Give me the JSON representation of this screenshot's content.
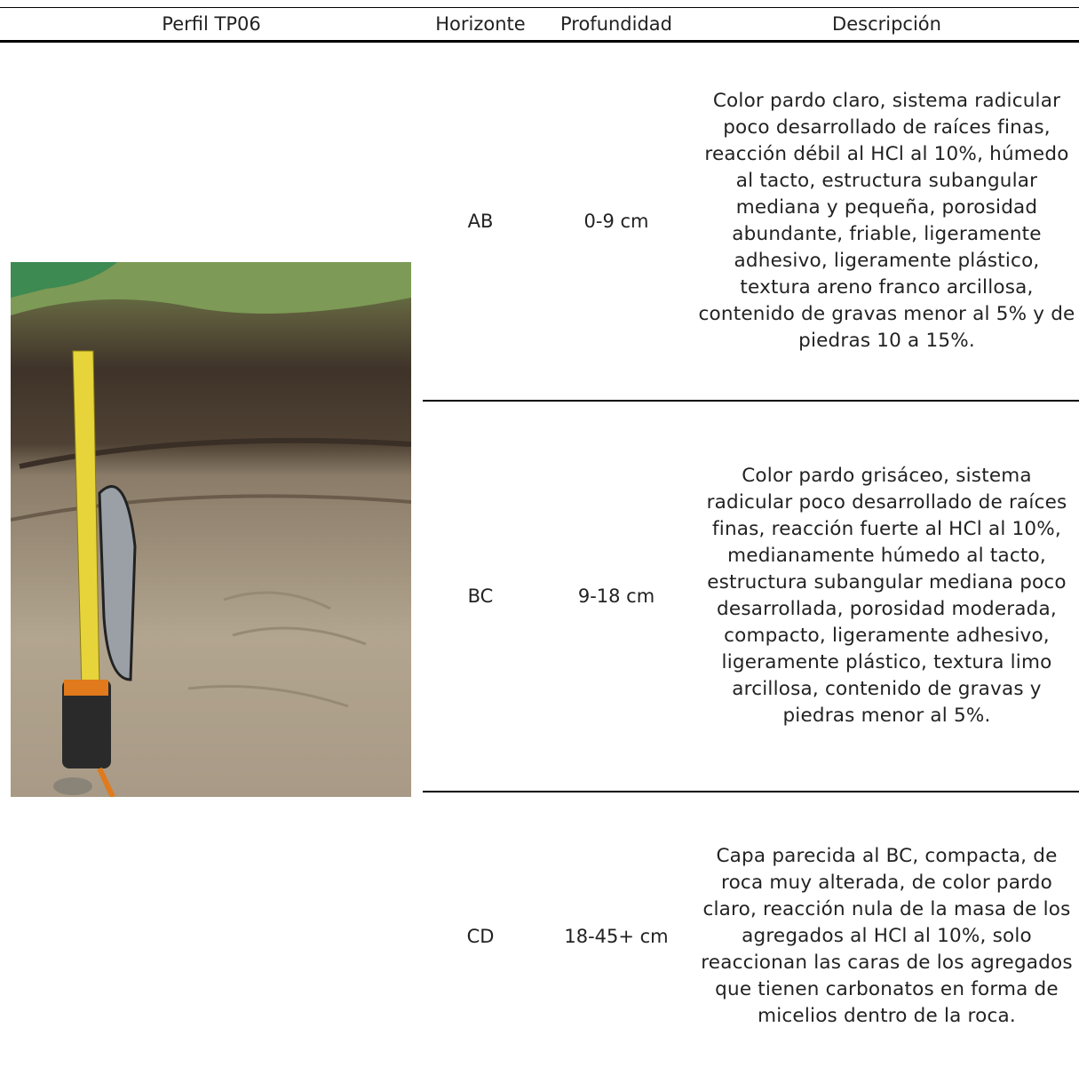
{
  "table": {
    "header": [
      "Perfil TP06",
      "Horizonte",
      "Profundidad",
      "Descripción"
    ],
    "rows": [
      {
        "horizonte": "AB",
        "profundidad": "0-9 cm",
        "descripcion": "Color pardo claro, sistema radicular poco desarrollado de raíces finas, reacción débil al HCl al 10%, húmedo al tacto, estructura subangular mediana y pequeña, porosidad abundante, friable, ligeramente adhesivo, ligeramente plástico, textura areno franco arcillosa, contenido de gravas menor al 5% y de piedras 10 a 15%."
      },
      {
        "horizonte": "BC",
        "profundidad": "9-18 cm",
        "descripcion": "Color pardo grisáceo, sistema radicular poco desarrollado de raíces finas, reacción fuerte al HCl al 10%, medianamente húmedo al tacto, estructura subangular mediana poco desarrollada, porosidad moderada, compacto, ligeramente adhesivo, ligeramente plástico, textura limo arcillosa, contenido de gravas y piedras menor al 5%."
      },
      {
        "horizonte": "CD",
        "profundidad": "18-45+ cm",
        "descripcion": "Capa parecida al BC, compacta, de roca muy alterada, de color pardo claro, reacción nula de la masa de los agregados al HCl al 10%, solo reaccionan las caras de los agregados que tienen carbonatos en forma de micelios dentro de la roca."
      }
    ]
  }
}
